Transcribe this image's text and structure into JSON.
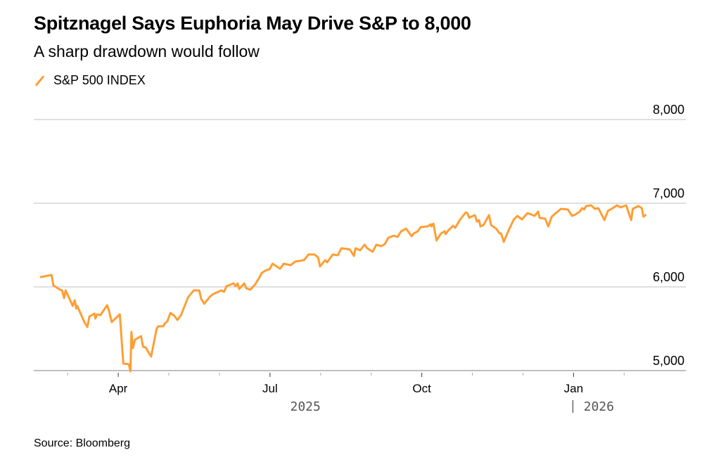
{
  "colors": {
    "series": "#ff9e34",
    "grid": "#cccccc",
    "axis": "#555555"
  },
  "chart_data": {
    "type": "line",
    "title": "Spitznagel Says Euphoria May Drive S&P to 8,000",
    "subtitle": "A sharp drawdown would follow",
    "legend": [
      "S&P 500 INDEX"
    ],
    "legend_placement": "top-left",
    "source": "Source: Bloomberg",
    "x_unit": "months since Jan 2025 (0 = Jan 1 2025)",
    "xlim": [
      1.33,
      14.22
    ],
    "ylim": [
      5000,
      8000
    ],
    "yticks": [
      5000,
      6000,
      7000,
      8000
    ],
    "ytick_labels": [
      "5,000",
      "6,000",
      "7,000",
      "8,000"
    ],
    "xticks": [
      2,
      3,
      4,
      5,
      6,
      7,
      8,
      9,
      10,
      11,
      12,
      13
    ],
    "xtick_labels": [
      {
        "x": 3,
        "label": "Apr"
      },
      {
        "x": 6,
        "label": "Jul"
      },
      {
        "x": 9,
        "label": "Oct"
      },
      {
        "x": 12,
        "label": "Jan"
      }
    ],
    "year_labels": [
      {
        "x": 6.7,
        "label": "2025"
      },
      {
        "x": 12.5,
        "label": "2026",
        "divider": true
      }
    ],
    "grid": true,
    "series": [
      {
        "name": "S&P 500 INDEX",
        "points": [
          [
            1.47,
            6118
          ],
          [
            1.68,
            6143
          ],
          [
            1.72,
            6017
          ],
          [
            1.85,
            5966
          ],
          [
            1.89,
            5958
          ],
          [
            1.93,
            5866
          ],
          [
            1.96,
            5958
          ],
          [
            2.1,
            5773
          ],
          [
            2.14,
            5840
          ],
          [
            2.17,
            5740
          ],
          [
            2.19,
            5773
          ],
          [
            2.33,
            5580
          ],
          [
            2.39,
            5521
          ],
          [
            2.43,
            5647
          ],
          [
            2.53,
            5681
          ],
          [
            2.55,
            5622
          ],
          [
            2.58,
            5672
          ],
          [
            2.65,
            5664
          ],
          [
            2.78,
            5782
          ],
          [
            2.82,
            5706
          ],
          [
            2.87,
            5580
          ],
          [
            3.03,
            5672
          ],
          [
            3.1,
            5084
          ],
          [
            3.21,
            5076
          ],
          [
            3.24,
            4992
          ],
          [
            3.26,
            5462
          ],
          [
            3.29,
            5269
          ],
          [
            3.33,
            5370
          ],
          [
            3.45,
            5412
          ],
          [
            3.49,
            5286
          ],
          [
            3.54,
            5277
          ],
          [
            3.65,
            5168
          ],
          [
            3.76,
            5504
          ],
          [
            3.79,
            5529
          ],
          [
            3.89,
            5529
          ],
          [
            3.92,
            5563
          ],
          [
            3.97,
            5588
          ],
          [
            4.03,
            5689
          ],
          [
            4.11,
            5655
          ],
          [
            4.17,
            5605
          ],
          [
            4.24,
            5664
          ],
          [
            4.38,
            5874
          ],
          [
            4.49,
            5958
          ],
          [
            4.6,
            5958
          ],
          [
            4.64,
            5857
          ],
          [
            4.7,
            5798
          ],
          [
            4.81,
            5882
          ],
          [
            4.88,
            5916
          ],
          [
            5.04,
            5958
          ],
          [
            5.09,
            5941
          ],
          [
            5.14,
            6008
          ],
          [
            5.28,
            6042
          ],
          [
            5.32,
            6008
          ],
          [
            5.36,
            6042
          ],
          [
            5.39,
            5975
          ],
          [
            5.49,
            6042
          ],
          [
            5.53,
            5983
          ],
          [
            5.61,
            5966
          ],
          [
            5.7,
            6025
          ],
          [
            5.77,
            6092
          ],
          [
            5.84,
            6168
          ],
          [
            5.93,
            6202
          ],
          [
            5.99,
            6210
          ],
          [
            6.05,
            6277
          ],
          [
            6.2,
            6218
          ],
          [
            6.27,
            6277
          ],
          [
            6.41,
            6260
          ],
          [
            6.5,
            6303
          ],
          [
            6.67,
            6319
          ],
          [
            6.76,
            6387
          ],
          [
            6.88,
            6387
          ],
          [
            6.95,
            6353
          ],
          [
            6.99,
            6244
          ],
          [
            7.09,
            6319
          ],
          [
            7.13,
            6294
          ],
          [
            7.2,
            6353
          ],
          [
            7.24,
            6387
          ],
          [
            7.34,
            6378
          ],
          [
            7.41,
            6462
          ],
          [
            7.51,
            6454
          ],
          [
            7.58,
            6445
          ],
          [
            7.66,
            6370
          ],
          [
            7.69,
            6462
          ],
          [
            7.78,
            6437
          ],
          [
            7.87,
            6504
          ],
          [
            7.92,
            6462
          ],
          [
            8.03,
            6420
          ],
          [
            8.1,
            6504
          ],
          [
            8.2,
            6487
          ],
          [
            8.27,
            6513
          ],
          [
            8.34,
            6588
          ],
          [
            8.45,
            6613
          ],
          [
            8.52,
            6597
          ],
          [
            8.59,
            6664
          ],
          [
            8.69,
            6697
          ],
          [
            8.8,
            6605
          ],
          [
            8.84,
            6639
          ],
          [
            8.92,
            6664
          ],
          [
            8.98,
            6714
          ],
          [
            9.11,
            6723
          ],
          [
            9.18,
            6748
          ],
          [
            9.19,
            6723
          ],
          [
            9.23,
            6756
          ],
          [
            9.24,
            6723
          ],
          [
            9.29,
            6555
          ],
          [
            9.38,
            6639
          ],
          [
            9.45,
            6664
          ],
          [
            9.47,
            6630
          ],
          [
            9.52,
            6672
          ],
          [
            9.62,
            6731
          ],
          [
            9.66,
            6706
          ],
          [
            9.75,
            6798
          ],
          [
            9.87,
            6891
          ],
          [
            9.9,
            6882
          ],
          [
            9.94,
            6824
          ],
          [
            9.98,
            6840
          ],
          [
            10.05,
            6857
          ],
          [
            10.09,
            6781
          ],
          [
            10.13,
            6798
          ],
          [
            10.16,
            6723
          ],
          [
            10.22,
            6739
          ],
          [
            10.33,
            6857
          ],
          [
            10.37,
            6739
          ],
          [
            10.47,
            6697
          ],
          [
            10.54,
            6639
          ],
          [
            10.57,
            6639
          ],
          [
            10.62,
            6538
          ],
          [
            10.72,
            6681
          ],
          [
            10.82,
            6807
          ],
          [
            10.89,
            6849
          ],
          [
            10.98,
            6807
          ],
          [
            11.09,
            6882
          ],
          [
            11.23,
            6849
          ],
          [
            11.3,
            6899
          ],
          [
            11.33,
            6824
          ],
          [
            11.44,
            6815
          ],
          [
            11.5,
            6723
          ],
          [
            11.57,
            6840
          ],
          [
            11.65,
            6882
          ],
          [
            11.75,
            6933
          ],
          [
            11.89,
            6924
          ],
          [
            11.97,
            6849
          ],
          [
            12.04,
            6866
          ],
          [
            12.12,
            6899
          ],
          [
            12.17,
            6941
          ],
          [
            12.21,
            6924
          ],
          [
            12.25,
            6966
          ],
          [
            12.35,
            6975
          ],
          [
            12.42,
            6933
          ],
          [
            12.49,
            6941
          ],
          [
            12.61,
            6798
          ],
          [
            12.68,
            6908
          ],
          [
            12.75,
            6933
          ],
          [
            12.86,
            6975
          ],
          [
            12.93,
            6950
          ],
          [
            13.04,
            6975
          ],
          [
            13.14,
            6798
          ],
          [
            13.17,
            6933
          ],
          [
            13.28,
            6966
          ],
          [
            13.35,
            6941
          ],
          [
            13.38,
            6840
          ],
          [
            13.42,
            6857
          ]
        ]
      }
    ]
  }
}
